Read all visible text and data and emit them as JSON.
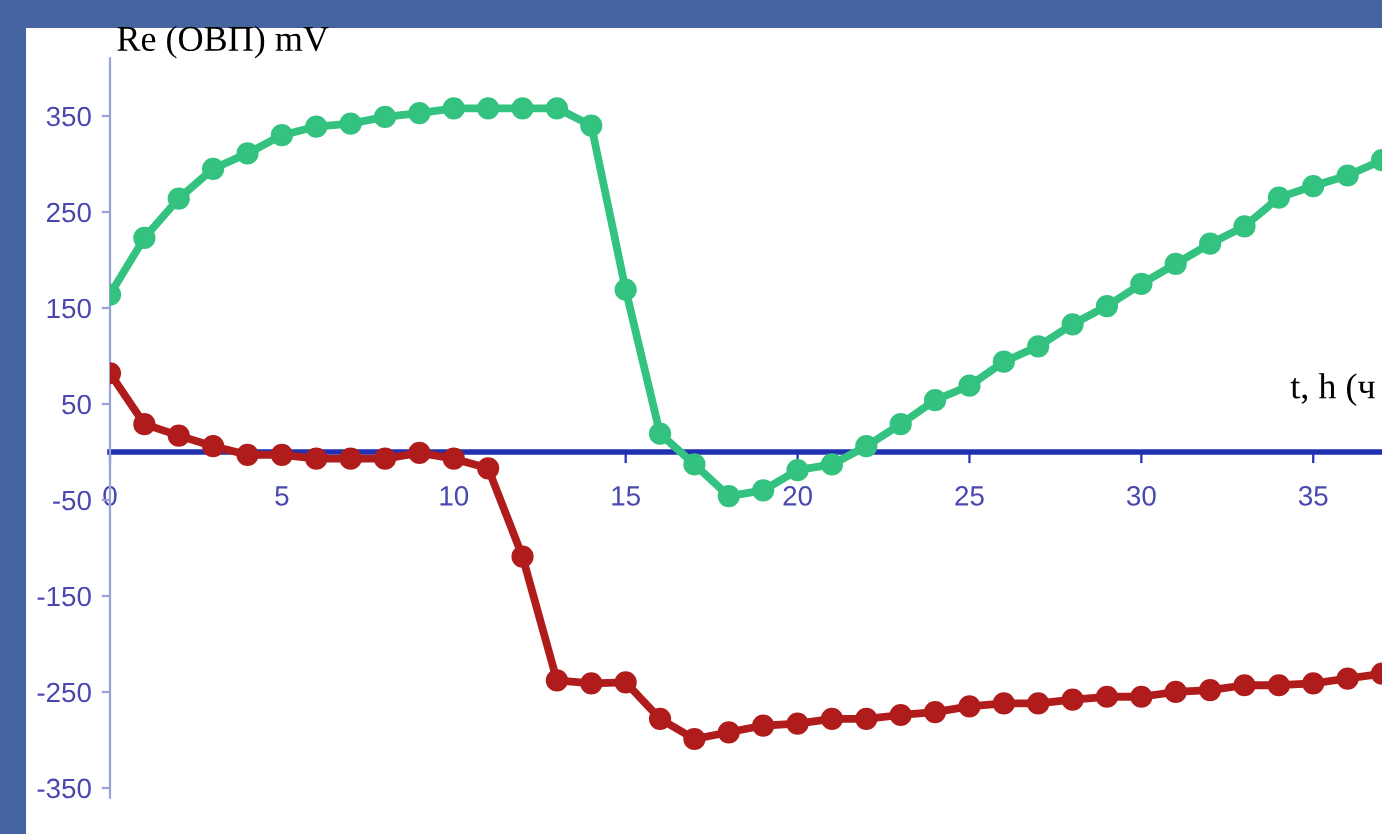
{
  "chart_data": {
    "type": "line",
    "ylabel": "Re (ОВП) mV",
    "xlabel": "t, h (ч",
    "x": [
      0,
      1,
      2,
      3,
      4,
      5,
      6,
      7,
      8,
      9,
      10,
      11,
      12,
      13,
      14,
      15,
      16,
      17,
      18,
      19,
      20,
      21,
      22,
      23,
      24,
      25,
      26,
      27,
      28,
      29,
      30,
      31,
      32,
      33,
      34,
      35,
      36,
      37
    ],
    "series": [
      {
        "color": "#33c27f",
        "values": [
          164,
          223,
          264,
          295,
          311,
          330,
          339,
          342,
          349,
          353,
          358,
          358,
          358,
          358,
          340,
          169,
          19,
          -13,
          -46,
          -40,
          -19,
          -13,
          6,
          29,
          54,
          69,
          94,
          110,
          133,
          152,
          175,
          196,
          217,
          235,
          265,
          277,
          288,
          304
        ]
      },
      {
        "color": "#b01c1c",
        "values": [
          82,
          29,
          17,
          6,
          -3,
          -3,
          -7,
          -7,
          -7,
          -1,
          -7,
          -17,
          -109,
          -238,
          -241,
          -240,
          -278,
          -299,
          -292,
          -285,
          -283,
          -278,
          -278,
          -274,
          -271,
          -265,
          -262,
          -262,
          -258,
          -255,
          -255,
          -250,
          -248,
          -243,
          -243,
          -241,
          -236,
          -231
        ]
      }
    ],
    "xlim": [
      0,
      37
    ],
    "ylim": [
      -360,
      410
    ],
    "xticks": [
      0,
      5,
      10,
      15,
      20,
      25,
      30,
      35
    ],
    "yticks": [
      -350,
      -250,
      -150,
      -50,
      50,
      150,
      250,
      350
    ],
    "grid": false,
    "legend": false,
    "marker": "circle",
    "line_style": "solid"
  }
}
